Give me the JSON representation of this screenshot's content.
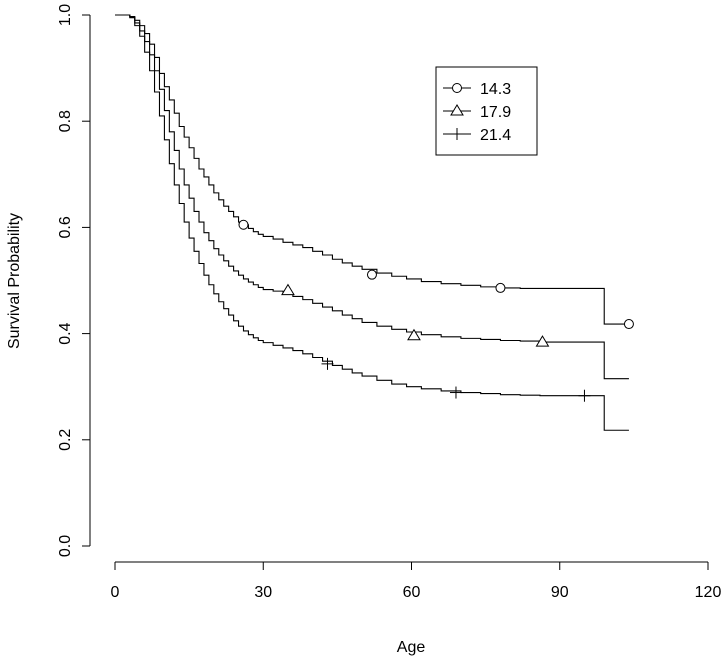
{
  "chart_data": {
    "type": "line",
    "title": "",
    "xlabel": "Age",
    "ylabel": "Survival Probability",
    "xlim": [
      0,
      120
    ],
    "ylim": [
      0,
      1
    ],
    "xticks": [
      "0",
      "30",
      "60",
      "90",
      "120"
    ],
    "yticks": [
      "0.0",
      "0.2",
      "0.4",
      "0.6",
      "0.8",
      "1.0"
    ],
    "grid": false,
    "legend_position": "top-right",
    "series": [
      {
        "name": "14.3",
        "marker": "circle",
        "x": [
          0,
          3,
          4,
          5,
          6,
          7,
          8,
          9,
          10,
          11,
          12,
          13,
          14,
          15,
          16,
          17,
          18,
          19,
          20,
          21,
          22,
          23,
          24,
          25,
          26,
          27,
          28,
          29,
          30,
          32,
          34,
          36,
          38,
          40,
          42,
          44,
          46,
          48,
          50,
          53,
          56,
          59,
          62,
          66,
          70,
          74,
          78,
          82,
          86,
          90,
          94,
          99,
          104
        ],
        "y": [
          1.0,
          0.997,
          0.99,
          0.98,
          0.965,
          0.945,
          0.92,
          0.89,
          0.865,
          0.84,
          0.815,
          0.79,
          0.77,
          0.75,
          0.73,
          0.71,
          0.695,
          0.68,
          0.665,
          0.652,
          0.64,
          0.63,
          0.62,
          0.61,
          0.605,
          0.598,
          0.592,
          0.587,
          0.583,
          0.578,
          0.572,
          0.567,
          0.562,
          0.555,
          0.548,
          0.54,
          0.533,
          0.527,
          0.521,
          0.514,
          0.508,
          0.503,
          0.498,
          0.494,
          0.491,
          0.488,
          0.486,
          0.485,
          0.485,
          0.485,
          0.485,
          0.418,
          0.418
        ],
        "markers_x": [
          26,
          52,
          78,
          104
        ],
        "markers_y": [
          0.605,
          0.511,
          0.486,
          0.418
        ]
      },
      {
        "name": "17.9",
        "marker": "triangle",
        "x": [
          0,
          3,
          4,
          5,
          6,
          7,
          8,
          9,
          10,
          11,
          12,
          13,
          14,
          15,
          16,
          17,
          18,
          19,
          20,
          21,
          22,
          23,
          24,
          25,
          26,
          27,
          28,
          29,
          30,
          32,
          34,
          36,
          38,
          40,
          42,
          44,
          46,
          48,
          50,
          53,
          56,
          59,
          62,
          66,
          70,
          74,
          78,
          82,
          86,
          90,
          94,
          99,
          104
        ],
        "y": [
          1.0,
          0.996,
          0.985,
          0.97,
          0.95,
          0.925,
          0.895,
          0.86,
          0.82,
          0.78,
          0.745,
          0.71,
          0.68,
          0.655,
          0.63,
          0.61,
          0.59,
          0.575,
          0.56,
          0.548,
          0.537,
          0.527,
          0.518,
          0.51,
          0.503,
          0.497,
          0.492,
          0.487,
          0.483,
          0.48,
          0.475,
          0.47,
          0.464,
          0.457,
          0.45,
          0.443,
          0.435,
          0.428,
          0.421,
          0.414,
          0.408,
          0.403,
          0.398,
          0.394,
          0.391,
          0.389,
          0.387,
          0.386,
          0.384,
          0.384,
          0.384,
          0.315,
          0.315
        ],
        "markers_x": [
          35,
          60.5,
          86.5
        ],
        "markers_y": [
          0.481,
          0.396,
          0.384
        ]
      },
      {
        "name": "21.4",
        "marker": "plus",
        "x": [
          0,
          3,
          4,
          5,
          6,
          7,
          8,
          9,
          10,
          11,
          12,
          13,
          14,
          15,
          16,
          17,
          18,
          19,
          20,
          21,
          22,
          23,
          24,
          25,
          26,
          27,
          28,
          29,
          30,
          32,
          34,
          36,
          38,
          40,
          42,
          44,
          46,
          48,
          50,
          53,
          56,
          59,
          62,
          66,
          70,
          74,
          78,
          82,
          86,
          90,
          94,
          99,
          104
        ],
        "y": [
          1.0,
          0.995,
          0.98,
          0.96,
          0.93,
          0.895,
          0.855,
          0.81,
          0.765,
          0.72,
          0.68,
          0.645,
          0.61,
          0.58,
          0.555,
          0.532,
          0.51,
          0.492,
          0.475,
          0.46,
          0.447,
          0.435,
          0.424,
          0.414,
          0.405,
          0.398,
          0.392,
          0.387,
          0.383,
          0.378,
          0.373,
          0.368,
          0.362,
          0.355,
          0.348,
          0.34,
          0.333,
          0.326,
          0.32,
          0.312,
          0.305,
          0.3,
          0.296,
          0.292,
          0.289,
          0.287,
          0.285,
          0.284,
          0.283,
          0.283,
          0.283,
          0.218,
          0.218
        ],
        "markers_x": [
          43,
          69,
          95
        ],
        "markers_y": [
          0.343,
          0.289,
          0.283
        ]
      }
    ]
  }
}
